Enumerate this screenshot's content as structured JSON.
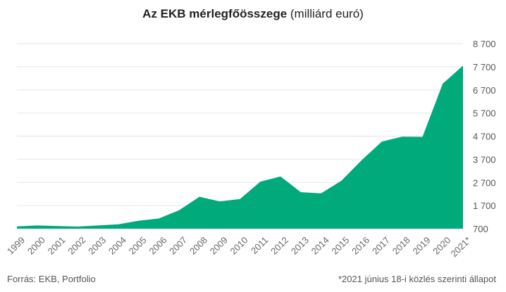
{
  "header": {
    "title_bold": "Az EKB mérlegfőösszege",
    "title_unit": " (milliárd euró)"
  },
  "footer": {
    "source": "Forrás: EKB, Portfolio",
    "note": "*2021 június 18-i közlés szerinti állapot"
  },
  "chart_data": {
    "type": "area",
    "title": "Az EKB mérlegfőösszege (milliárd euró)",
    "categories": [
      "1999",
      "2000",
      "2001",
      "2002",
      "2003",
      "2004",
      "2005",
      "2006",
      "2007",
      "2008",
      "2009",
      "2010",
      "2011",
      "2012",
      "2013",
      "2014",
      "2015",
      "2016",
      "2017",
      "2018",
      "2019",
      "2020",
      "2021*"
    ],
    "series": [
      {
        "values": [
          800,
          840,
          815,
          790,
          840,
          890,
          1040,
          1140,
          1500,
          2080,
          1880,
          1980,
          2730,
          2960,
          2280,
          2230,
          2770,
          3660,
          4470,
          4680,
          4670,
          6970,
          7750
        ]
      }
    ],
    "ylim": [
      700,
      8700
    ],
    "yticks": [
      700,
      1700,
      2700,
      3700,
      4700,
      5700,
      6700,
      7700,
      8700
    ],
    "ytick_labels": [
      "700",
      "1 700",
      "2 700",
      "3 700",
      "4 700",
      "5 700",
      "6 700",
      "7 700",
      "8 700"
    ],
    "grid": true,
    "y_axis_position": "right",
    "colors": {
      "fill": "#00aa7b",
      "grid": "#e6e6e6"
    }
  }
}
